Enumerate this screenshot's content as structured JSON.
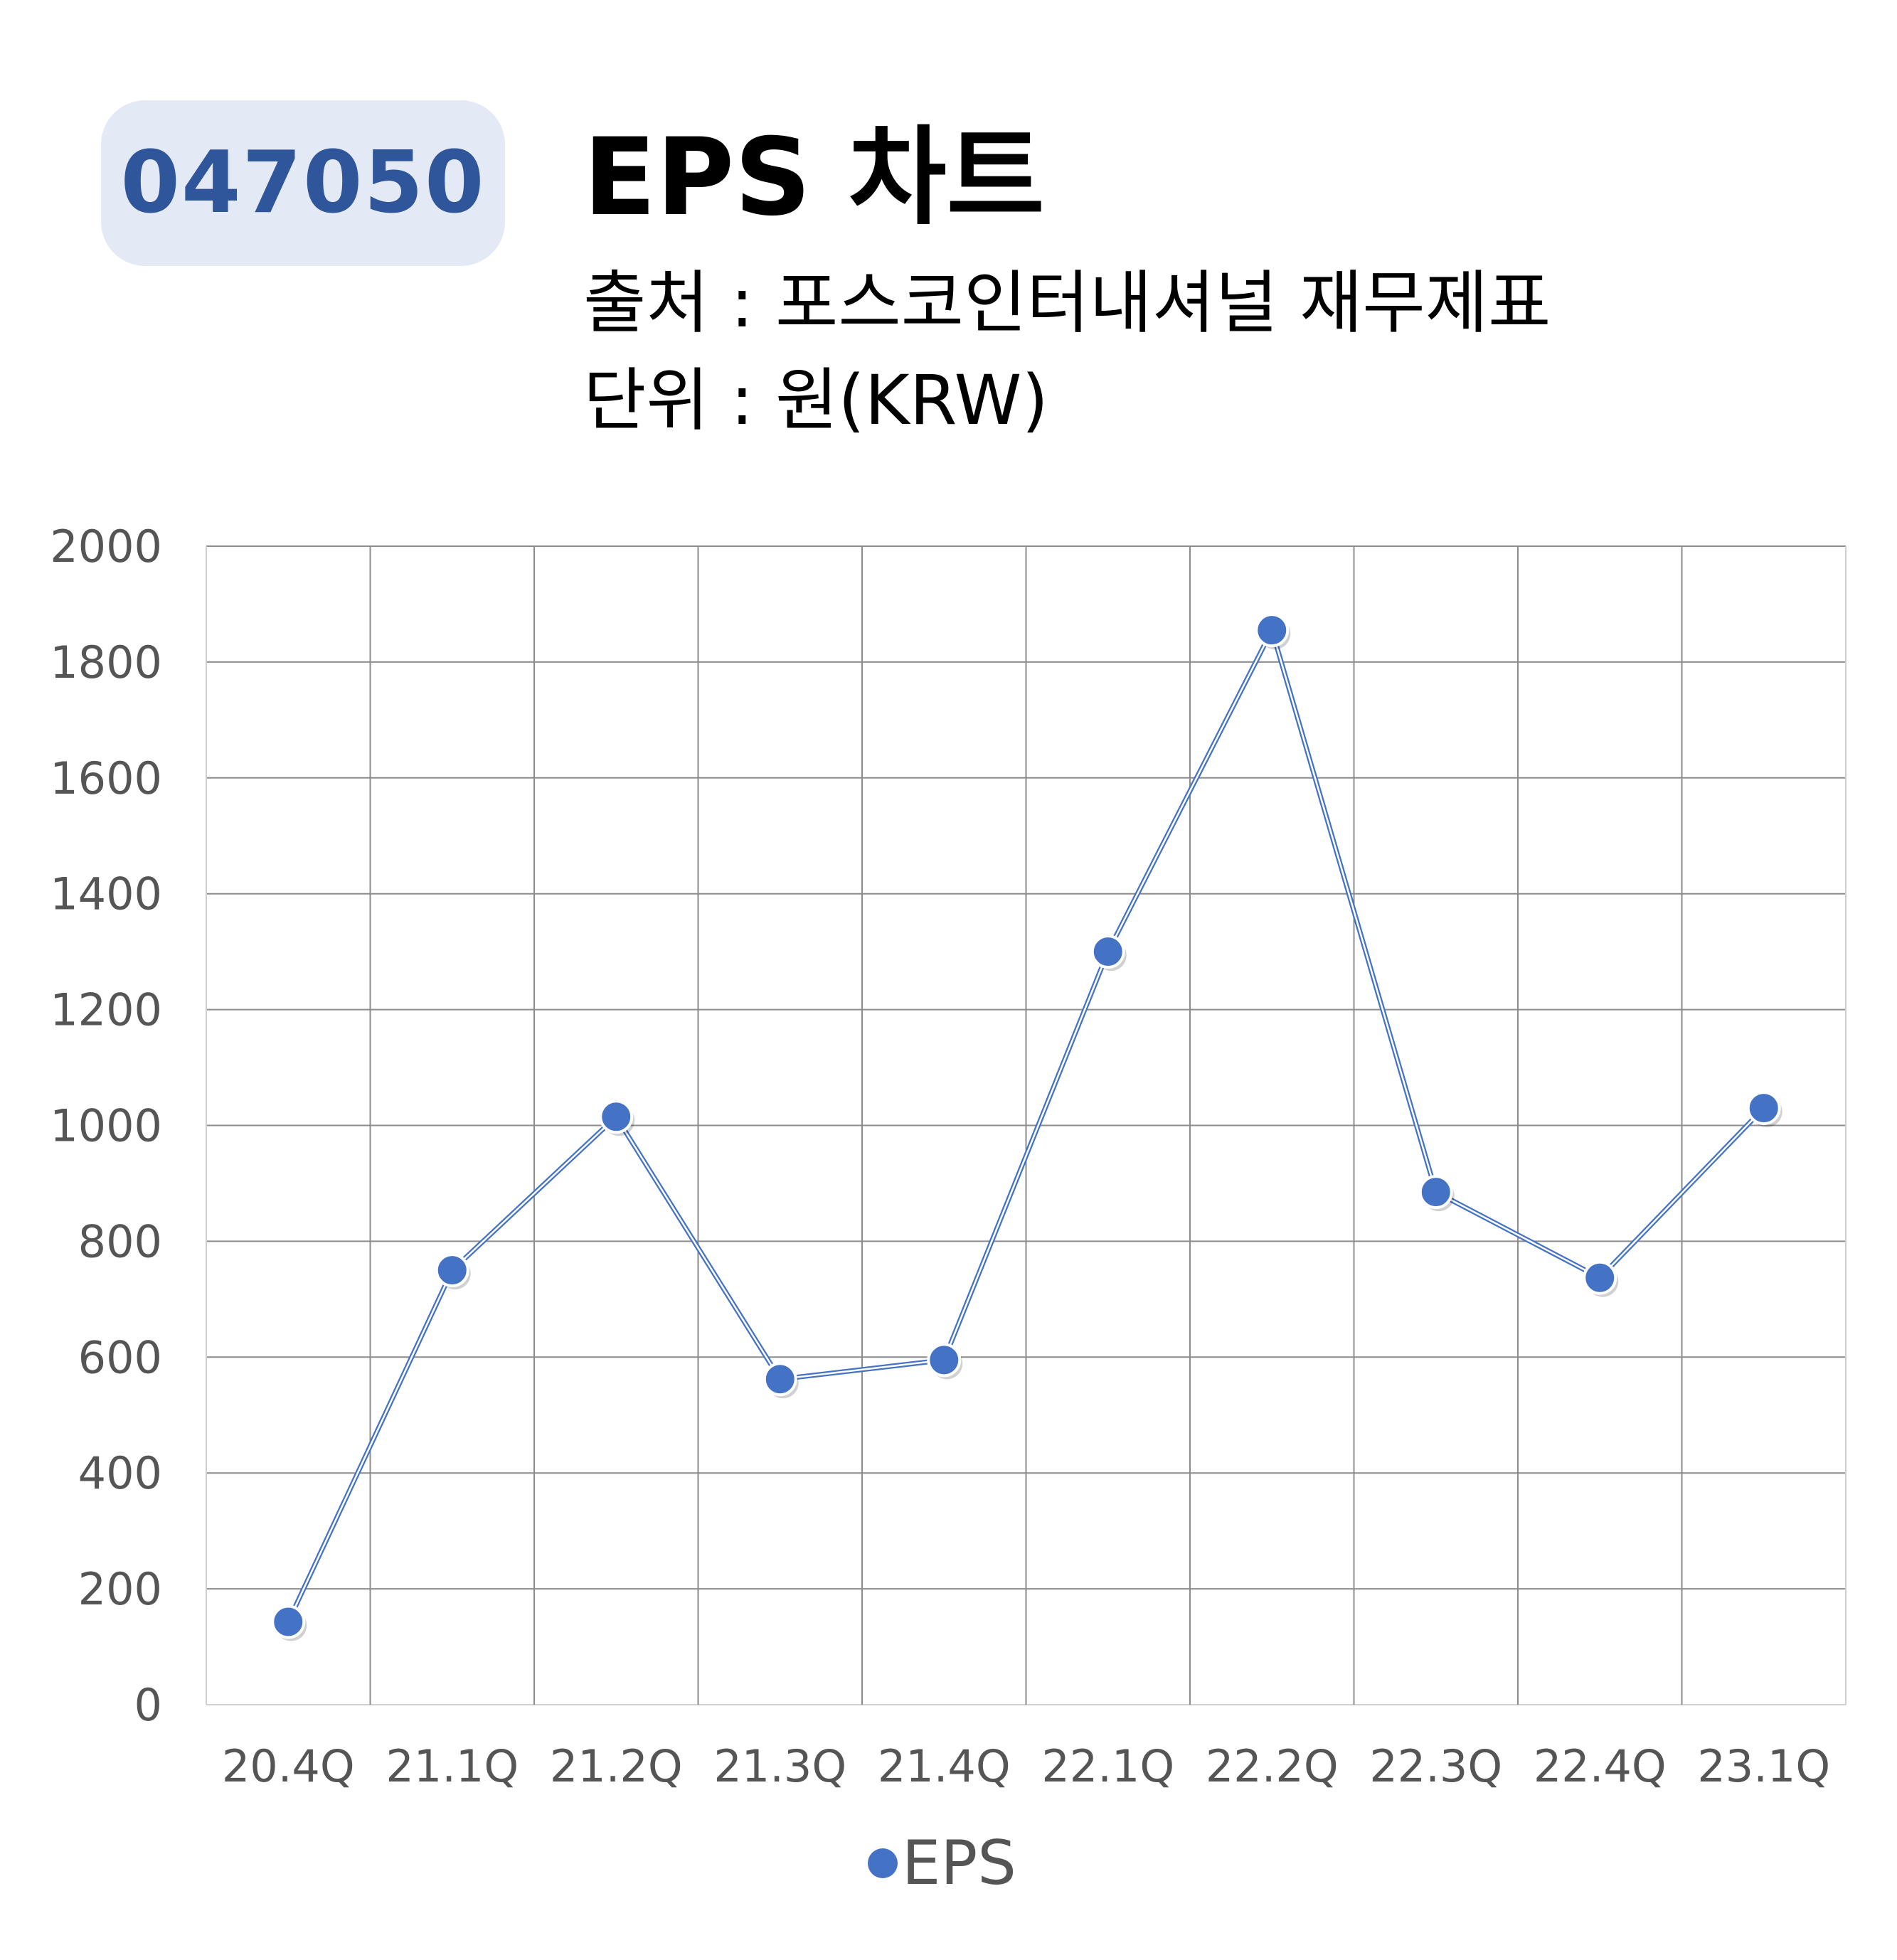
{
  "header": {
    "ticker": "047050",
    "title": "EPS 차트",
    "source_line": "출처 : 포스코인터내셔널 재무제표",
    "unit_line": "단위 : 원(KRW)"
  },
  "colors": {
    "badge_bg": "#e3e9f5",
    "badge_text": "#2f559a",
    "series": "#4472c4",
    "grid": "#8c8c8c",
    "tick_text": "#555555"
  },
  "chart_data": {
    "type": "line",
    "title": "EPS 차트",
    "xlabel": "",
    "ylabel": "",
    "categories": [
      "20.4Q",
      "21.1Q",
      "21.2Q",
      "21.3Q",
      "21.4Q",
      "22.1Q",
      "22.2Q",
      "22.3Q",
      "22.4Q",
      "23.1Q"
    ],
    "series": [
      {
        "name": "EPS",
        "values": [
          143,
          750,
          1015,
          562,
          595,
          1300,
          1855,
          885,
          737,
          1030
        ]
      }
    ],
    "ylim": [
      0,
      2000
    ],
    "yticks": [
      0,
      200,
      400,
      600,
      800,
      1000,
      1200,
      1400,
      1600,
      1800,
      2000
    ],
    "grid": true,
    "legend": "bottom",
    "markers": true
  }
}
